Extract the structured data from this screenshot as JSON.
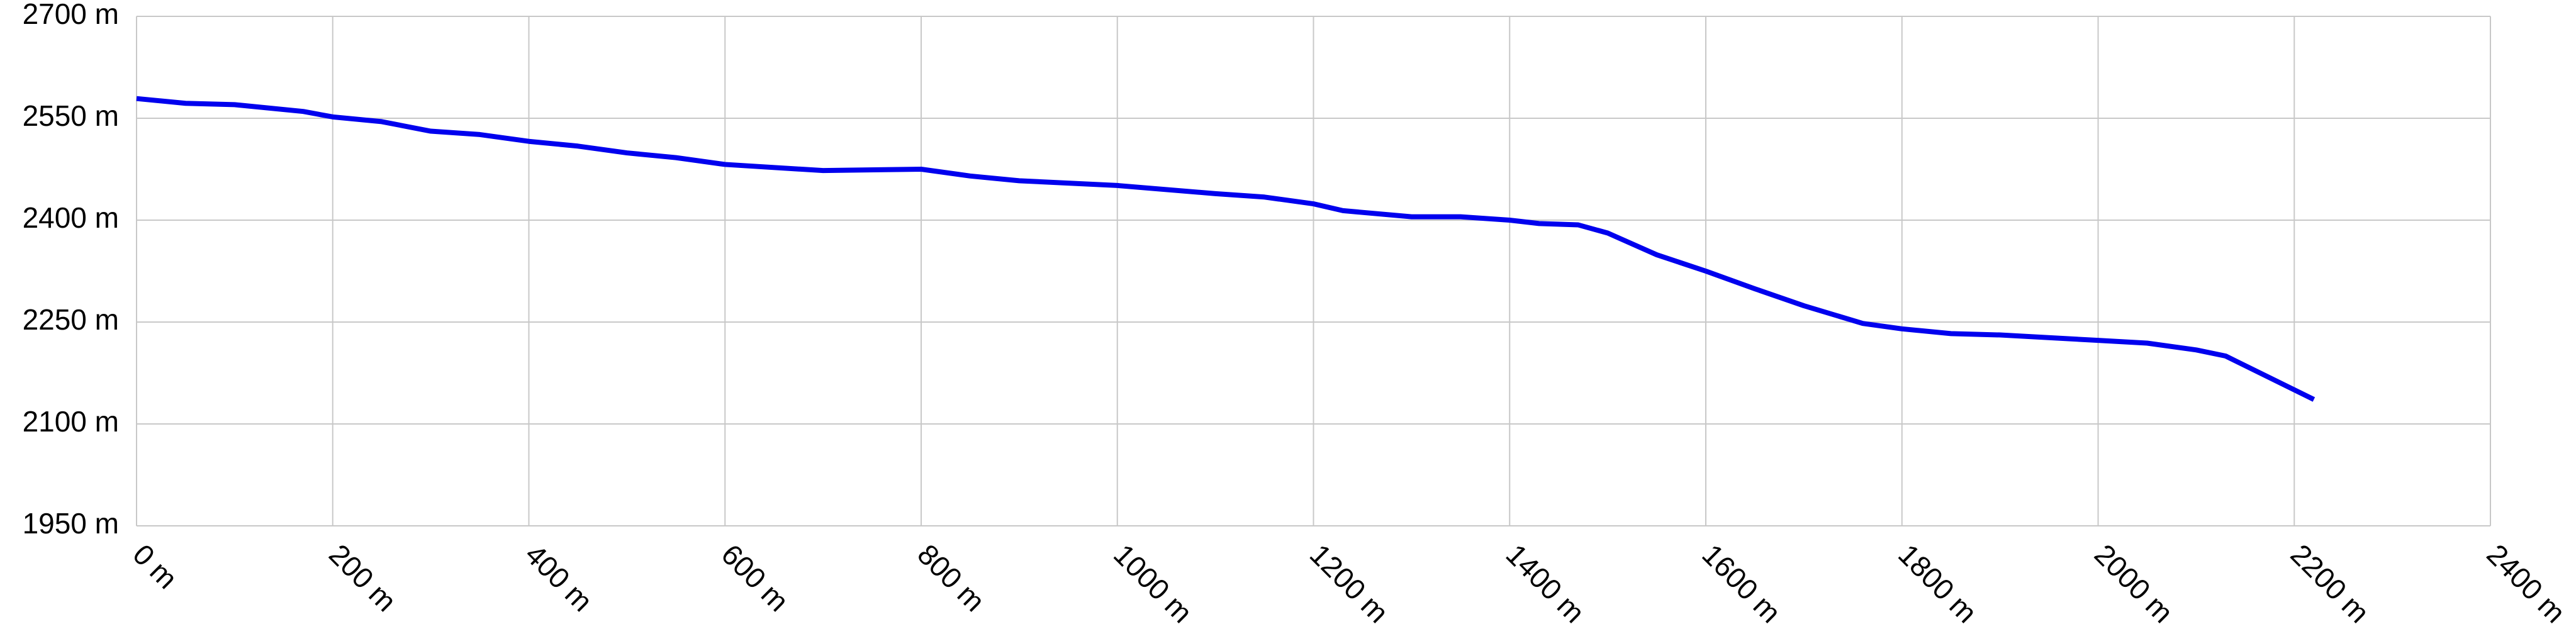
{
  "chart_data": {
    "type": "line",
    "x": [
      0,
      50,
      100,
      170,
      200,
      250,
      300,
      350,
      400,
      450,
      500,
      550,
      600,
      700,
      800,
      850,
      900,
      1000,
      1100,
      1150,
      1200,
      1230,
      1300,
      1350,
      1400,
      1430,
      1470,
      1500,
      1550,
      1600,
      1650,
      1700,
      1760,
      1800,
      1850,
      1900,
      2000,
      2050,
      2100,
      2130,
      2220
    ],
    "series": [
      {
        "color": "#0000ee",
        "values": [
          2579,
          2572,
          2570,
          2560,
          2552,
          2545,
          2531,
          2526,
          2516,
          2509,
          2499,
          2492,
          2482,
          2473,
          2475,
          2465,
          2458,
          2451,
          2439,
          2434,
          2424,
          2414,
          2405,
          2405,
          2400,
          2395,
          2393,
          2381,
          2349,
          2325,
          2299,
          2274,
          2248,
          2240,
          2233,
          2231,
          2223,
          2219,
          2209,
          2200,
          2136
        ]
      }
    ],
    "xlim": [
      0,
      2400
    ],
    "xticks": [
      {
        "value": 0,
        "label": "0 m"
      },
      {
        "value": 200,
        "label": "200 m"
      },
      {
        "value": 400,
        "label": "400 m"
      },
      {
        "value": 600,
        "label": "600 m"
      },
      {
        "value": 800,
        "label": "800 m"
      },
      {
        "value": 1000,
        "label": "1000 m"
      },
      {
        "value": 1200,
        "label": "1200 m"
      },
      {
        "value": 1400,
        "label": "1400 m"
      },
      {
        "value": 1600,
        "label": "1600 m"
      },
      {
        "value": 1800,
        "label": "1800 m"
      },
      {
        "value": 2000,
        "label": "2000 m"
      },
      {
        "value": 2200,
        "label": "2200 m"
      },
      {
        "value": 2400,
        "label": "2400 m"
      }
    ],
    "ylim": [
      1950,
      2700
    ],
    "yticks": [
      {
        "value": 1950,
        "label": "1950 m"
      },
      {
        "value": 2100,
        "label": "2100 m"
      },
      {
        "value": 2250,
        "label": "2250 m"
      },
      {
        "value": 2400,
        "label": "2400 m"
      },
      {
        "value": 2550,
        "label": "2550 m"
      },
      {
        "value": 2700,
        "label": "2700 m"
      }
    ],
    "grid": true
  }
}
